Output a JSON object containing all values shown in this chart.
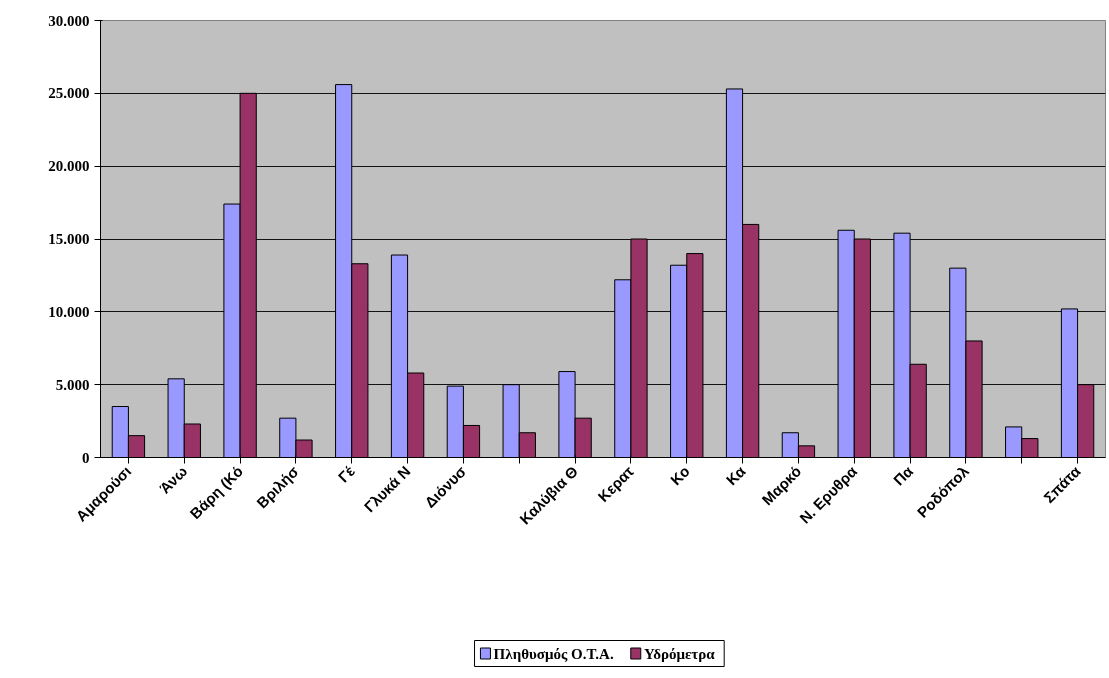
{
  "chart_data": {
    "type": "bar",
    "categories": [
      "Αμαρούσι",
      "Άνω",
      "Βάρη (Κό",
      "Βριλήσ",
      "Γέ",
      "Γλυκά Ν",
      "Διόνυσ",
      null,
      "Καλύβια Θ",
      "Κερατ",
      "Κο",
      "Κα",
      "Μαρκό",
      "Ν. Ερυθρα",
      "Πα",
      "Ροδόπολ",
      null,
      "Σπάτα"
    ],
    "series": [
      {
        "name": "Πληθυσμός Ο.Τ.Α.",
        "color": "#9999ff",
        "values": [
          3500,
          5400,
          17400,
          2700,
          25600,
          13900,
          4900,
          5000,
          5900,
          12200,
          13200,
          25300,
          1700,
          15600,
          15400,
          13000,
          2100,
          10200
        ]
      },
      {
        "name": "Υδρόμετρα",
        "color": "#993366",
        "values": [
          1500,
          2300,
          25000,
          1200,
          13300,
          5800,
          2200,
          1700,
          2700,
          15000,
          14000,
          16000,
          800,
          15000,
          6400,
          8000,
          1300,
          5000
        ]
      }
    ],
    "ylim": [
      0,
      30000
    ],
    "yticks": [
      {
        "value": 0,
        "label": "0"
      },
      {
        "value": 5000,
        "label": "5.000"
      },
      {
        "value": 10000,
        "label": "10.000"
      },
      {
        "value": 15000,
        "label": "15.000"
      },
      {
        "value": 20000,
        "label": "20.000"
      },
      {
        "value": 25000,
        "label": "25.000"
      },
      {
        "value": 30000,
        "label": "30.000"
      }
    ],
    "grid": "y",
    "legend": "bottom"
  }
}
